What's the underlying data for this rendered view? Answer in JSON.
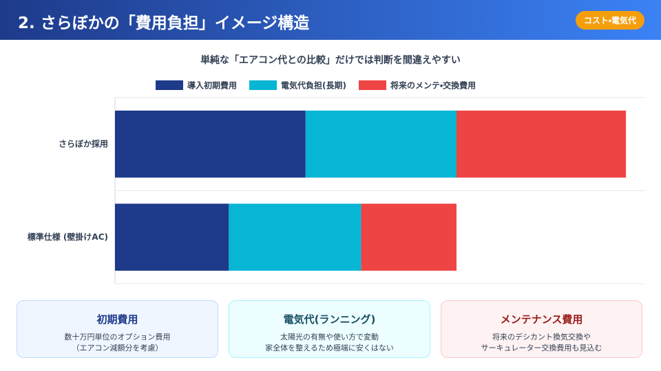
{
  "header": {
    "title": "2. さらぼかの「費用負担」イメージ構造",
    "badge": "コスト・電気代"
  },
  "chart_data": {
    "type": "bar",
    "orientation": "horizontal",
    "stacked": true,
    "title": "単純な「エアコン代との比較」だけでは判断を間違えやすい",
    "categories": [
      "さらぼか採用",
      "標準仕様 (壁掛けAC)"
    ],
    "series": [
      {
        "name": "導入初期費用",
        "color": "#1e3a8a",
        "values": [
          36,
          21.5
        ]
      },
      {
        "name": "電気代負担(長期)",
        "color": "#06b6d4",
        "values": [
          28.5,
          25
        ]
      },
      {
        "name": "将来のメンテ・交換費用",
        "color": "#ef4444",
        "values": [
          32,
          18
        ]
      }
    ],
    "xlim": [
      0,
      100
    ],
    "legend": "top"
  },
  "cards": [
    {
      "title": "初期費用",
      "lines": [
        "数十万円単位のオプション費用",
        "（エアコン減額分を考慮）"
      ]
    },
    {
      "title": "電気代(ランニング)",
      "lines": [
        "太陽光の有無や使い方で変動",
        "家全体を整えるため極端に安くはない"
      ]
    },
    {
      "title": "メンテナンス費用",
      "lines": [
        "将来のデシカント換気交換や",
        "サーキュレーター交換費用も見込む"
      ]
    }
  ]
}
